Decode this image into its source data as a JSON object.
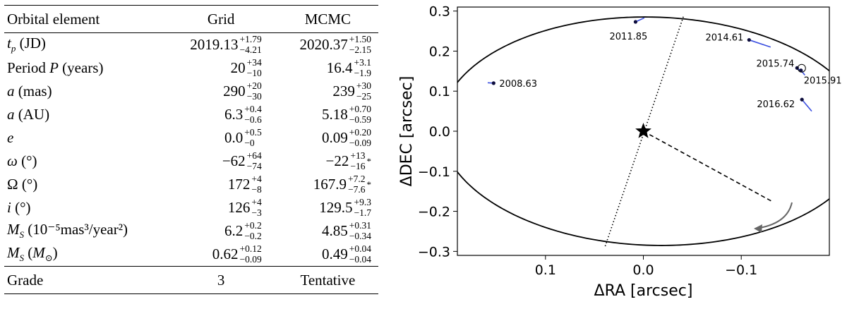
{
  "table": {
    "headers": [
      "Orbital element",
      "Grid",
      "MCMC"
    ],
    "rows": [
      {
        "label": "t_p (JD)",
        "grid": {
          "v": "2019.13",
          "up": "+1.79",
          "lo": "−4.21"
        },
        "mcmc": {
          "v": "2020.37",
          "up": "+1.50",
          "lo": "−2.15",
          "star": ""
        }
      },
      {
        "label": "Period P (years)",
        "grid": {
          "v": "20",
          "up": "+34",
          "lo": "−10"
        },
        "mcmc": {
          "v": "16.4",
          "up": "+3.1",
          "lo": "−1.9",
          "star": ""
        }
      },
      {
        "label": "a (mas)",
        "grid": {
          "v": "290",
          "up": "+20",
          "lo": "−30"
        },
        "mcmc": {
          "v": "239",
          "up": "+30",
          "lo": "−25",
          "star": ""
        }
      },
      {
        "label": "a (AU)",
        "grid": {
          "v": "6.3",
          "up": "+0.4",
          "lo": "−0.6"
        },
        "mcmc": {
          "v": "5.18",
          "up": "+0.70",
          "lo": "−0.59",
          "star": ""
        }
      },
      {
        "label": "e",
        "grid": {
          "v": "0.0",
          "up": "+0.5",
          "lo": "−0"
        },
        "mcmc": {
          "v": "0.09",
          "up": "+0.20",
          "lo": "−0.09",
          "star": ""
        }
      },
      {
        "label": "ω (°)",
        "grid": {
          "v": "−62",
          "up": "+64",
          "lo": "−74"
        },
        "mcmc": {
          "v": "−22",
          "up": "+13",
          "lo": "−16",
          "star": "*"
        }
      },
      {
        "label": "Ω (°)",
        "grid": {
          "v": "172",
          "up": "+4",
          "lo": "−8"
        },
        "mcmc": {
          "v": "167.9",
          "up": "+7.2",
          "lo": "−7.6",
          "star": "*"
        }
      },
      {
        "label": "i (°)",
        "grid": {
          "v": "126",
          "up": "+4",
          "lo": "−3"
        },
        "mcmc": {
          "v": "129.5",
          "up": "+9.3",
          "lo": "−1.7",
          "star": ""
        }
      },
      {
        "label": "M_S (10⁻⁵mas³/year²)",
        "grid": {
          "v": "6.2",
          "up": "+0.2",
          "lo": "−0.2"
        },
        "mcmc": {
          "v": "4.85",
          "up": "+0.31",
          "lo": "−0.34",
          "star": ""
        }
      },
      {
        "label": "M_S (M⊙)",
        "grid": {
          "v": "0.62",
          "up": "+0.12",
          "lo": "−0.09"
        },
        "mcmc": {
          "v": "0.49",
          "up": "+0.04",
          "lo": "−0.04",
          "star": ""
        }
      }
    ],
    "footer": {
      "label": "Grade",
      "grid": "3",
      "mcmc": "Tentative"
    }
  },
  "chart_data": {
    "type": "scatter",
    "title": "",
    "xlabel": "ΔRA [arcsec]",
    "ylabel": "ΔDEC [arcsec]",
    "xlim": [
      0.19,
      -0.19
    ],
    "ylim": [
      -0.31,
      0.31
    ],
    "xticks": [
      0.1,
      0.0,
      -0.1
    ],
    "xtick_labels": [
      "0.1",
      "0.0",
      "−0.1"
    ],
    "yticks": [
      0.3,
      0.2,
      0.1,
      0.0,
      -0.1,
      -0.2,
      -0.3
    ],
    "ytick_labels": [
      "0.3",
      "0.2",
      "0.1",
      "0.0",
      "−0.1",
      "−0.2",
      "−0.3"
    ],
    "star": {
      "x": 0.0,
      "y": 0.0
    },
    "orbit": {
      "center_x": -0.01,
      "center_y": 0.0,
      "semi_major": 0.217,
      "semi_minor": 0.2855,
      "rotation_deg": -4
    },
    "line_of_nodes": {
      "x1": 0.039,
      "y1": -0.287,
      "x2": -0.041,
      "y2": 0.287
    },
    "periastron_line": {
      "x1": 0.0,
      "y1": 0.0,
      "x2": -0.132,
      "y2": -0.176
    },
    "observations": [
      {
        "epoch": "2008.63",
        "x": 0.153,
        "y": 0.12,
        "model_x": 0.159,
        "model_y": 0.121
      },
      {
        "epoch": "2011.85",
        "x": 0.008,
        "y": 0.273,
        "model_x": -0.001,
        "model_y": 0.283
      },
      {
        "epoch": "2014.61",
        "x": -0.108,
        "y": 0.228,
        "model_x": -0.13,
        "model_y": 0.21
      },
      {
        "epoch": "2015.74",
        "x": -0.157,
        "y": 0.158,
        "model_x": -0.161,
        "model_y": 0.15
      },
      {
        "epoch": "2015.91",
        "x": -0.161,
        "y": 0.152,
        "model_x": -0.165,
        "model_y": 0.14
      },
      {
        "epoch": "2016.62",
        "x": -0.162,
        "y": 0.079,
        "model_x": -0.172,
        "model_y": 0.05
      }
    ],
    "direction_arrow": "clockwise"
  },
  "colors": {
    "points": "#0d0d3d",
    "residual": "#3b4fe0",
    "arrow": "#666666"
  }
}
